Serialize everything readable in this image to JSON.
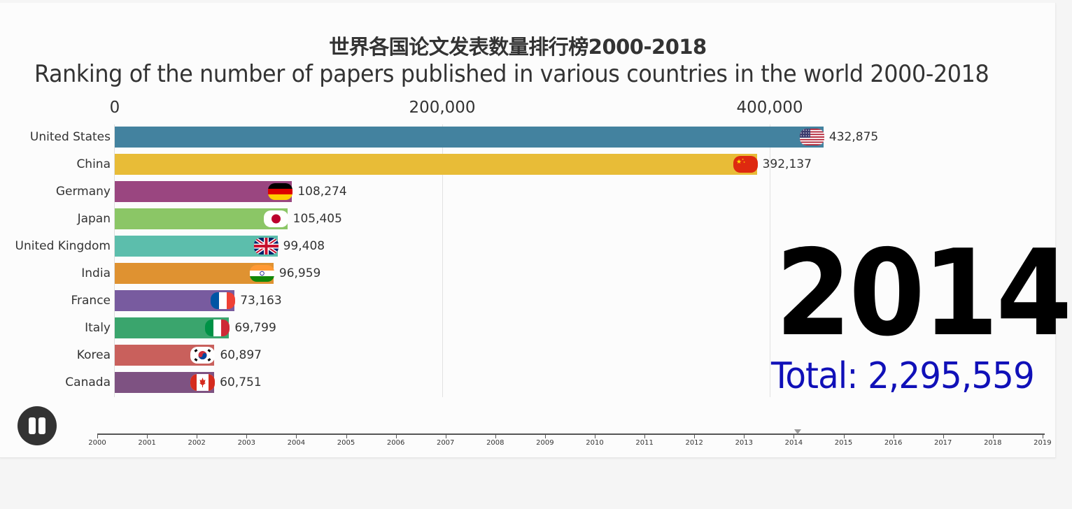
{
  "title": {
    "cn": "世界各国论文发表数量排行榜2000-2018",
    "en": "Ranking of the number of papers published in various countries in the world 2000-2018"
  },
  "axis": {
    "ticks": [
      {
        "value": 0,
        "label": "0"
      },
      {
        "value": 200000,
        "label": "200,000"
      },
      {
        "value": 400000,
        "label": "400,000"
      }
    ]
  },
  "current_year": "2014",
  "total_label": "Total: 2,295,559",
  "controls": {
    "play_state": "playing",
    "pause_icon": "pause-icon"
  },
  "timeline": {
    "years": [
      "2000",
      "2001",
      "2002",
      "2003",
      "2004",
      "2005",
      "2006",
      "2007",
      "2008",
      "2009",
      "2010",
      "2011",
      "2012",
      "2013",
      "2014",
      "2015",
      "2016",
      "2017",
      "2018",
      "2019"
    ],
    "marker_year": "2014"
  },
  "colors": {
    "year": "#000000",
    "total": "#1010b8",
    "background": "#fcfcfc",
    "page_background": "#f5f5f5"
  },
  "bars": [
    {
      "country": "United States",
      "value": 432875,
      "value_label": "432,875",
      "color": "#43829f",
      "flag": "us-flag-icon"
    },
    {
      "country": "China",
      "value": 392137,
      "value_label": "392,137",
      "color": "#e8bc37",
      "flag": "cn-flag-icon"
    },
    {
      "country": "Germany",
      "value": 108274,
      "value_label": "108,274",
      "color": "#9a4680",
      "flag": "de-flag-icon"
    },
    {
      "country": "Japan",
      "value": 105405,
      "value_label": "105,405",
      "color": "#8bc666",
      "flag": "jp-flag-icon"
    },
    {
      "country": "United Kingdom",
      "value": 99408,
      "value_label": "99,408",
      "color": "#5cbeac",
      "flag": "gb-flag-icon"
    },
    {
      "country": "India",
      "value": 96959,
      "value_label": "96,959",
      "color": "#df9231",
      "flag": "in-flag-icon"
    },
    {
      "country": "France",
      "value": 73163,
      "value_label": "73,163",
      "color": "#785b9f",
      "flag": "fr-flag-icon"
    },
    {
      "country": "Italy",
      "value": 69799,
      "value_label": "69,799",
      "color": "#3aa56d",
      "flag": "it-flag-icon"
    },
    {
      "country": "Korea",
      "value": 60897,
      "value_label": "60,897",
      "color": "#c9605c",
      "flag": "kr-flag-icon"
    },
    {
      "country": "Canada",
      "value": 60751,
      "value_label": "60,751",
      "color": "#7e5282",
      "flag": "ca-flag-icon"
    }
  ],
  "chart_data": {
    "type": "bar",
    "orientation": "horizontal",
    "title": "世界各国论文发表数量排行榜2000-2018",
    "subtitle": "Ranking of the number of papers published in various countries in the world 2000-2018",
    "categories": [
      "United States",
      "China",
      "Germany",
      "Japan",
      "United Kingdom",
      "India",
      "France",
      "Italy",
      "Korea",
      "Canada"
    ],
    "values": [
      432875,
      392137,
      108274,
      105405,
      99408,
      96959,
      73163,
      69799,
      60897,
      60751
    ],
    "xlabel": "",
    "ylabel": "",
    "xlim": [
      0,
      460000
    ],
    "x_ticks": [
      0,
      200000,
      400000
    ],
    "x_tick_labels": [
      "0",
      "200,000",
      "400,000"
    ],
    "grid": true,
    "axis_position": "top",
    "annotations": [
      "2014",
      "Total: 2,295,559"
    ],
    "frame_year": 2014,
    "total": 2295559,
    "legend": null
  }
}
